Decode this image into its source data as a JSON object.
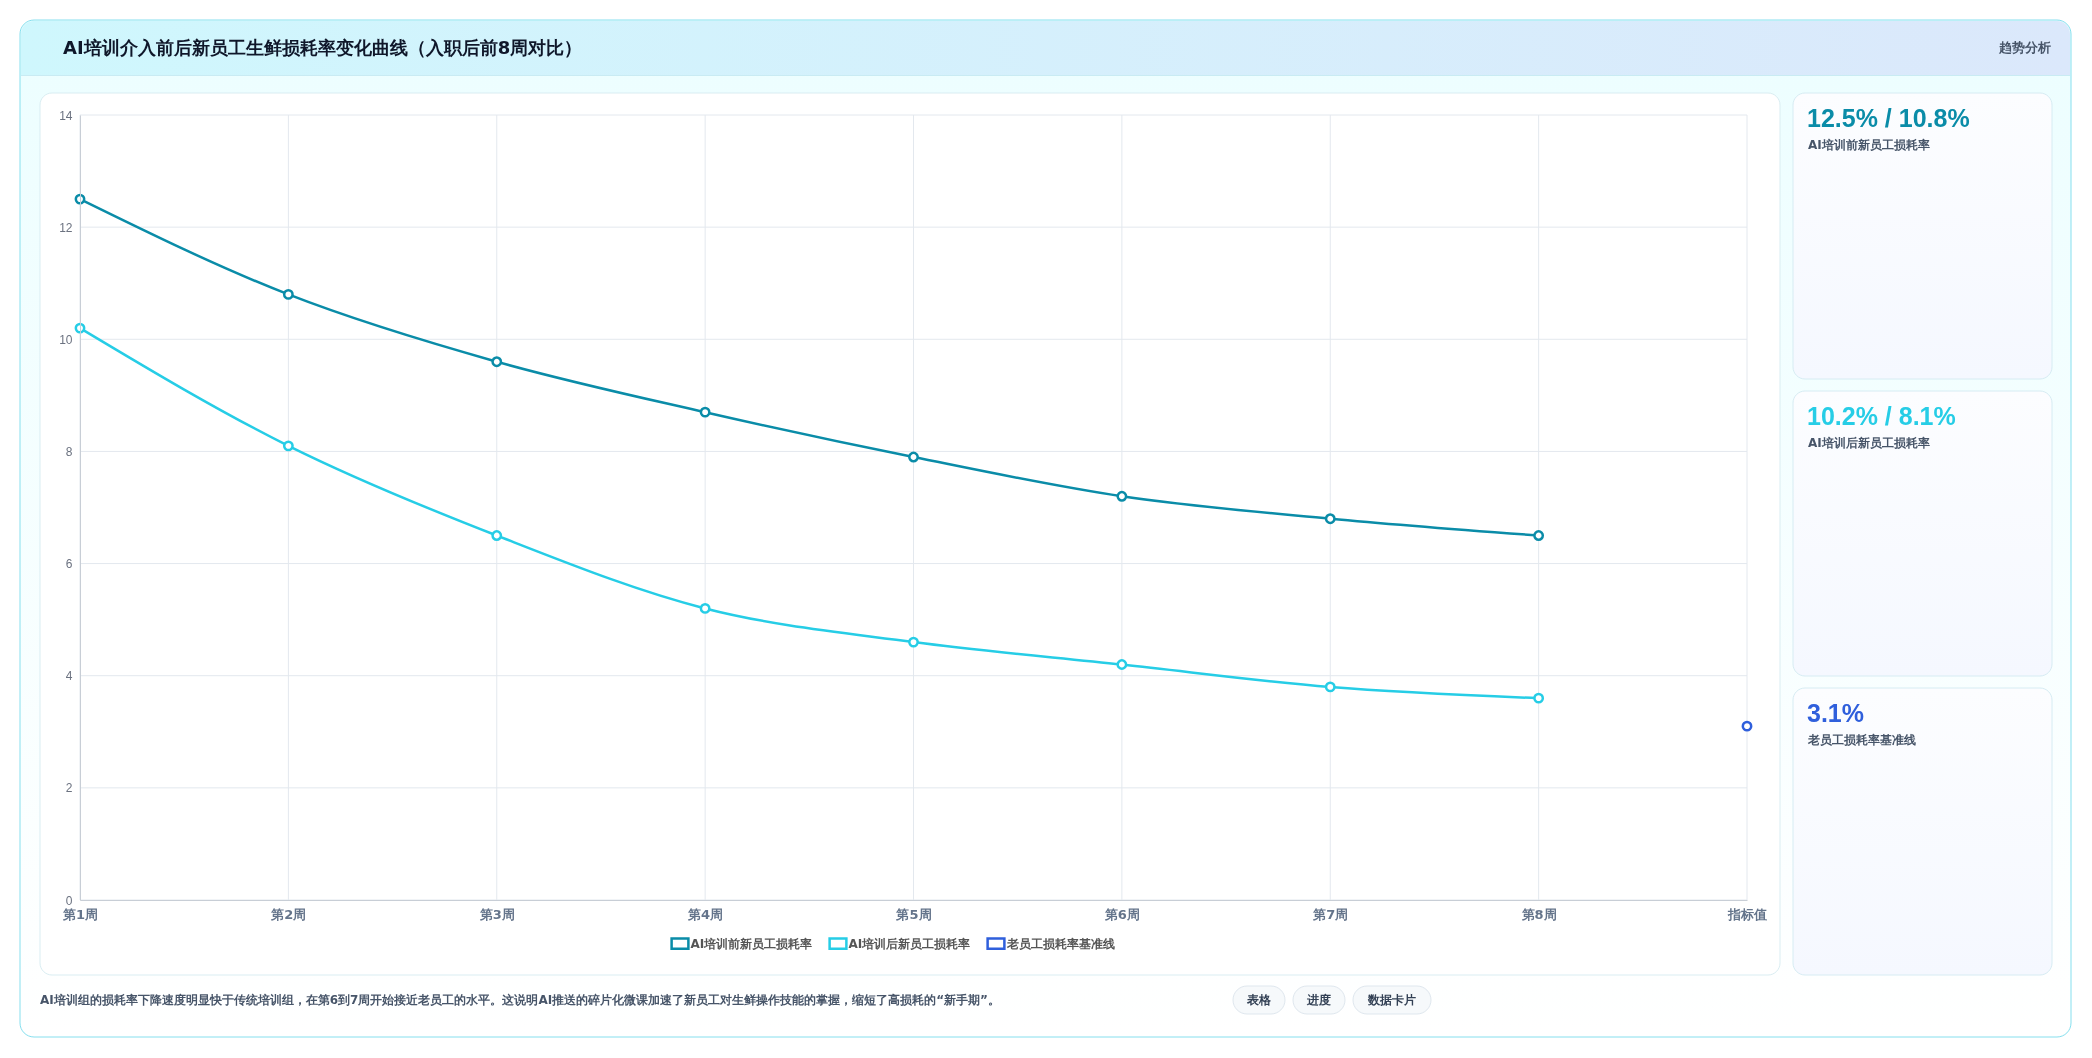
{
  "chart_data": [
    {
      "type": "line",
      "title": "AI培训介入前后新员工生鲜损耗率变化曲线（入职后前8周对比）",
      "categories": [
        "第1周",
        "第2周",
        "第3周",
        "第4周",
        "第5周",
        "第6周",
        "第7周",
        "第8周",
        "指标值"
      ],
      "series": [
        {
          "name": "AI培训前新员工损耗率",
          "color": "#0a8ca8",
          "values": [
            12.5,
            10.8,
            9.6,
            8.7,
            7.9,
            7.2,
            6.8,
            6.5,
            null
          ]
        },
        {
          "name": "AI培训后新员工损耗率",
          "color": "#26cde6",
          "values": [
            10.2,
            8.1,
            6.5,
            5.2,
            4.6,
            4.2,
            3.8,
            3.6,
            null
          ]
        },
        {
          "name": "老员工损耗率基准线",
          "color": "#2f5fdc",
          "values": [
            null,
            null,
            null,
            null,
            null,
            null,
            null,
            null,
            3.1
          ]
        }
      ],
      "ylim": [
        0,
        14
      ],
      "yticks": [
        0,
        2,
        4,
        6,
        8,
        10,
        12,
        14
      ],
      "grid": true,
      "legend": "bottom",
      "marker": "circle",
      "line_style": "solid",
      "annotations": [
        "AI培训组的损耗率下降速度明显快于传统培训组，在第6到7周开始接近老员工的水平。这说明AI推送的碎片化微课加速了新员工对生鲜操作技能的掌握，缩短了高损耗的“新手期”。",
        "表格",
        "进度",
        "数据卡片"
      ]
    },
    {
      "type": "other",
      "title": "12.5% / 10.8%",
      "subtitle": "AI培训前新员工损耗率",
      "colors": [
        "#0a8ca8"
      ],
      "annotations": [
        "趋势分析"
      ]
    },
    {
      "type": "other",
      "title": "10.2% / 8.1%",
      "subtitle": "AI培训后新员工损耗率",
      "colors": [
        "#26cde6"
      ]
    },
    {
      "type": "other",
      "title": "3.1%",
      "subtitle": "老员工损耗率基准线",
      "colors": [
        "#2f5fdc"
      ]
    }
  ]
}
